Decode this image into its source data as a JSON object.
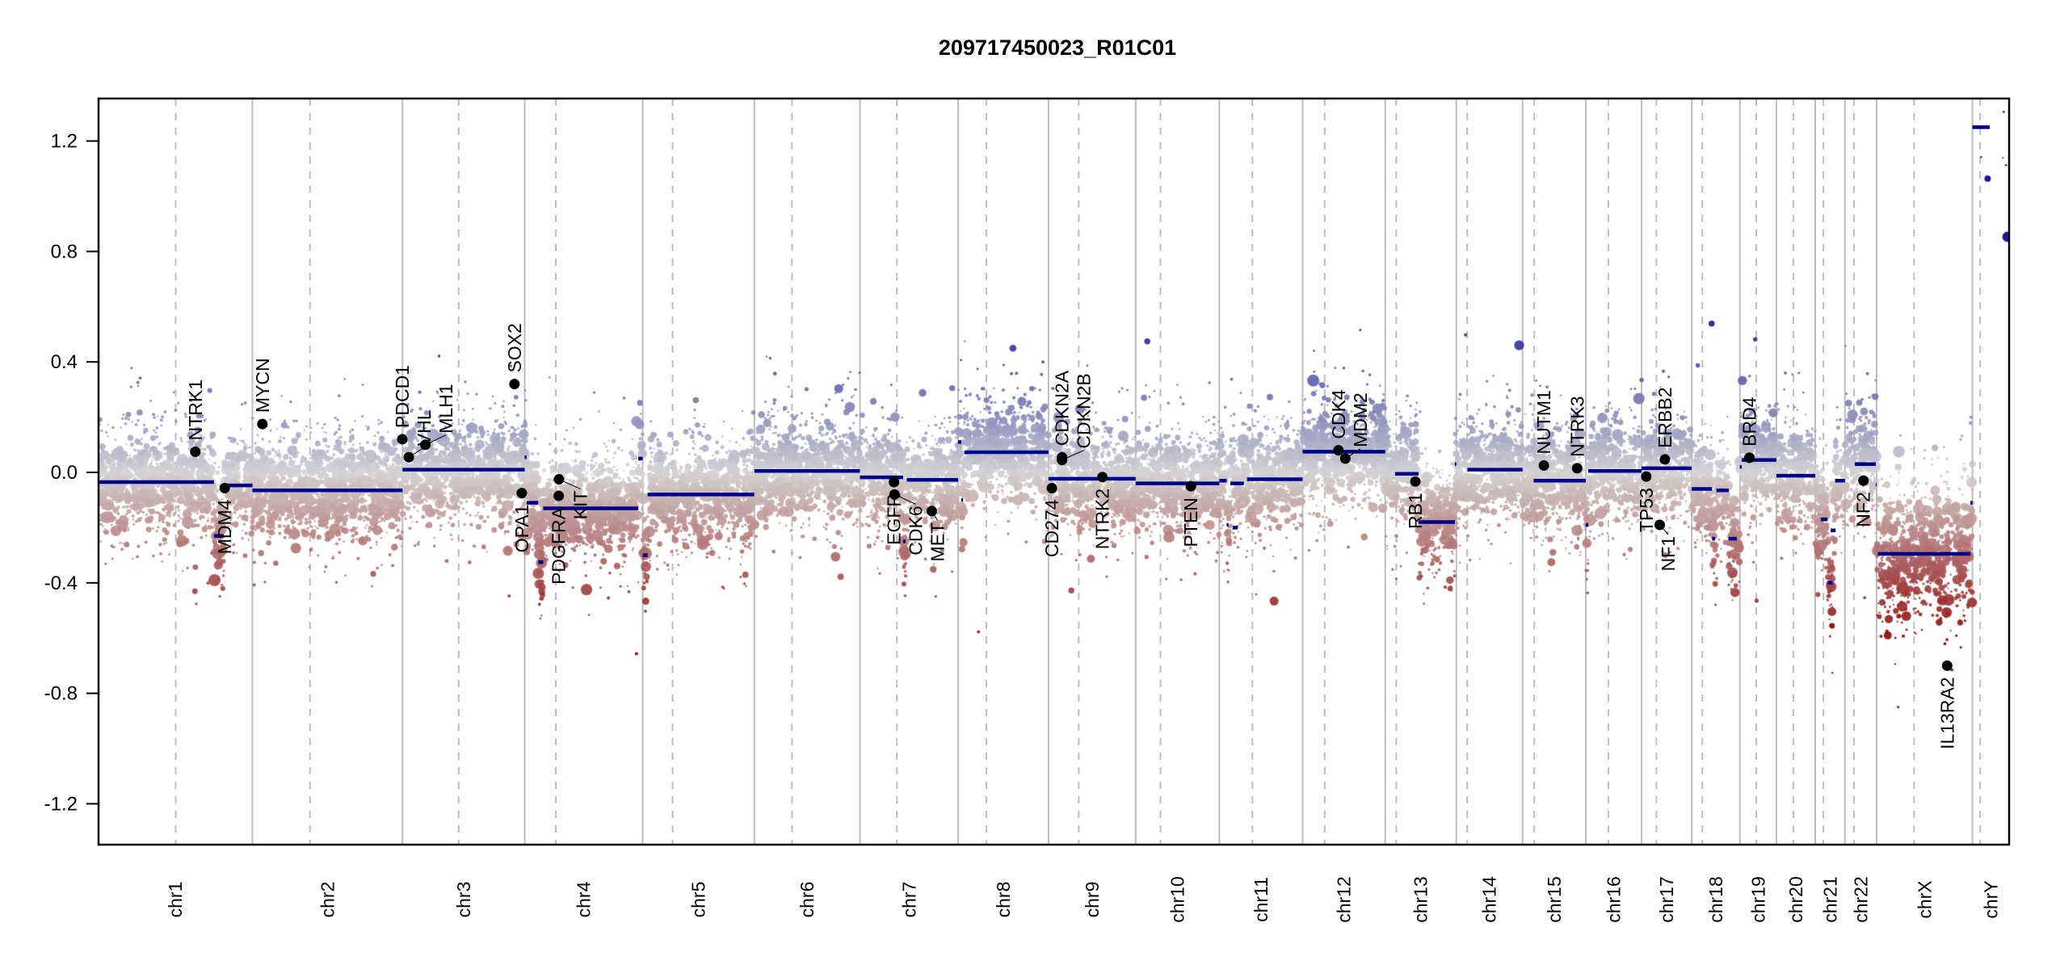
{
  "title": "209717450023_R01C01",
  "colors": {
    "gain": "#00008b",
    "loss": "#8b0000",
    "neutral": "#d3d3d3",
    "segment": "#00008b",
    "grid": "#bebebe",
    "gene_point": "#000000"
  },
  "chart_data": {
    "type": "scatter",
    "title": "209717450023_R01C01",
    "xlabel": "",
    "ylabel": "",
    "ylim": [
      -1.35,
      1.35
    ],
    "yticks": [
      -1.2,
      -0.8,
      -0.4,
      0.0,
      0.4,
      0.8,
      1.2
    ],
    "ytick_labels": [
      "-1.2",
      "-0.8",
      "-0.4",
      "0.0",
      "0.4",
      "0.8",
      "1.2"
    ],
    "grid": "chromosome boundaries (solid) and centromeres (dashed)",
    "chromosomes": [
      {
        "name": "chr1",
        "length_mb": 249.3,
        "centromere_mb": 125.0
      },
      {
        "name": "chr2",
        "length_mb": 243.2,
        "centromere_mb": 93.3
      },
      {
        "name": "chr3",
        "length_mb": 198.0,
        "centromere_mb": 91.0
      },
      {
        "name": "chr4",
        "length_mb": 191.2,
        "centromere_mb": 50.4
      },
      {
        "name": "chr5",
        "length_mb": 180.9,
        "centromere_mb": 48.4
      },
      {
        "name": "chr6",
        "length_mb": 171.1,
        "centromere_mb": 61.0
      },
      {
        "name": "chr7",
        "length_mb": 159.1,
        "centromere_mb": 59.9
      },
      {
        "name": "chr8",
        "length_mb": 146.4,
        "centromere_mb": 45.6
      },
      {
        "name": "chr9",
        "length_mb": 141.2,
        "centromere_mb": 49.0
      },
      {
        "name": "chr10",
        "length_mb": 135.5,
        "centromere_mb": 40.2
      },
      {
        "name": "chr11",
        "length_mb": 135.0,
        "centromere_mb": 53.7
      },
      {
        "name": "chr12",
        "length_mb": 133.9,
        "centromere_mb": 35.8
      },
      {
        "name": "chr13",
        "length_mb": 115.2,
        "centromere_mb": 17.9
      },
      {
        "name": "chr14",
        "length_mb": 107.3,
        "centromere_mb": 17.6
      },
      {
        "name": "chr15",
        "length_mb": 102.5,
        "centromere_mb": 19.0
      },
      {
        "name": "chr16",
        "length_mb": 90.4,
        "centromere_mb": 36.6
      },
      {
        "name": "chr17",
        "length_mb": 81.2,
        "centromere_mb": 24.0
      },
      {
        "name": "chr18",
        "length_mb": 78.1,
        "centromere_mb": 17.2
      },
      {
        "name": "chr19",
        "length_mb": 59.1,
        "centromere_mb": 26.5
      },
      {
        "name": "chr20",
        "length_mb": 63.0,
        "centromere_mb": 27.5
      },
      {
        "name": "chr21",
        "length_mb": 48.1,
        "centromere_mb": 13.2
      },
      {
        "name": "chr22",
        "length_mb": 51.3,
        "centromere_mb": 14.7
      },
      {
        "name": "chrX",
        "length_mb": 155.3,
        "centromere_mb": 60.6
      },
      {
        "name": "chrY",
        "length_mb": 59.4,
        "centromere_mb": 12.5
      }
    ],
    "segments": [
      {
        "chr": "chr1",
        "start_mb": 0,
        "end_mb": 187,
        "value": -0.035
      },
      {
        "chr": "chr1",
        "start_mb": 187,
        "end_mb": 203,
        "value": -0.23
      },
      {
        "chr": "chr1",
        "start_mb": 203,
        "end_mb": 249.3,
        "value": -0.047
      },
      {
        "chr": "chr2",
        "start_mb": 0,
        "end_mb": 243.2,
        "value": -0.065
      },
      {
        "chr": "chr3",
        "start_mb": 0,
        "end_mb": 198.0,
        "value": 0.01
      },
      {
        "chr": "chr4",
        "start_mb": 0,
        "end_mb": 3,
        "value": 0.055
      },
      {
        "chr": "chr4",
        "start_mb": 3,
        "end_mb": 22,
        "value": -0.11
      },
      {
        "chr": "chr4",
        "start_mb": 22,
        "end_mb": 30,
        "value": -0.325
      },
      {
        "chr": "chr4",
        "start_mb": 30,
        "end_mb": 184,
        "value": -0.13
      },
      {
        "chr": "chr4",
        "start_mb": 184,
        "end_mb": 191.2,
        "value": 0.05
      },
      {
        "chr": "chr5",
        "start_mb": 0,
        "end_mb": 8,
        "value": -0.3
      },
      {
        "chr": "chr5",
        "start_mb": 8,
        "end_mb": 180.9,
        "value": -0.08
      },
      {
        "chr": "chr6",
        "start_mb": 0,
        "end_mb": 171.1,
        "value": 0.005
      },
      {
        "chr": "chr7",
        "start_mb": 0,
        "end_mb": 70,
        "value": -0.018
      },
      {
        "chr": "chr7",
        "start_mb": 70,
        "end_mb": 74,
        "value": -0.25
      },
      {
        "chr": "chr7",
        "start_mb": 76,
        "end_mb": 159.1,
        "value": -0.027
      },
      {
        "chr": "chr8",
        "start_mb": 0,
        "end_mb": 5,
        "value": 0.11
      },
      {
        "chr": "chr8",
        "start_mb": 5,
        "end_mb": 8,
        "value": -0.1
      },
      {
        "chr": "chr8",
        "start_mb": 10,
        "end_mb": 146.4,
        "value": 0.073
      },
      {
        "chr": "chr9",
        "start_mb": 0,
        "end_mb": 141.2,
        "value": -0.023
      },
      {
        "chr": "chr10",
        "start_mb": 0,
        "end_mb": 135.5,
        "value": -0.04
      },
      {
        "chr": "chr11",
        "start_mb": 0,
        "end_mb": 12,
        "value": -0.03
      },
      {
        "chr": "chr11",
        "start_mb": 12,
        "end_mb": 15,
        "value": -0.19
      },
      {
        "chr": "chr11",
        "start_mb": 18,
        "end_mb": 40,
        "value": -0.04
      },
      {
        "chr": "chr11",
        "start_mb": 22,
        "end_mb": 30,
        "value": -0.2
      },
      {
        "chr": "chr11",
        "start_mb": 45,
        "end_mb": 135.0,
        "value": -0.025
      },
      {
        "chr": "chr12",
        "start_mb": 0,
        "end_mb": 133.9,
        "value": 0.075
      },
      {
        "chr": "chr13",
        "start_mb": 16,
        "end_mb": 54,
        "value": -0.005
      },
      {
        "chr": "chr13",
        "start_mb": 54,
        "end_mb": 113,
        "value": -0.18
      },
      {
        "chr": "chr13",
        "start_mb": 113,
        "end_mb": 115.2,
        "value": 0.03
      },
      {
        "chr": "chr14",
        "start_mb": 18,
        "end_mb": 107.3,
        "value": 0.01
      },
      {
        "chr": "chr15",
        "start_mb": 18,
        "end_mb": 102.5,
        "value": -0.03
      },
      {
        "chr": "chr16",
        "start_mb": 0,
        "end_mb": 4,
        "value": -0.19
      },
      {
        "chr": "chr16",
        "start_mb": 4,
        "end_mb": 90.4,
        "value": 0.005
      },
      {
        "chr": "chr17",
        "start_mb": 0,
        "end_mb": 81.2,
        "value": 0.015
      },
      {
        "chr": "chr18",
        "start_mb": 0,
        "end_mb": 33,
        "value": -0.06
      },
      {
        "chr": "chr18",
        "start_mb": 33,
        "end_mb": 38,
        "value": -0.24
      },
      {
        "chr": "chr18",
        "start_mb": 40,
        "end_mb": 60,
        "value": -0.065
      },
      {
        "chr": "chr18",
        "start_mb": 60,
        "end_mb": 73,
        "value": -0.24
      },
      {
        "chr": "chr19",
        "start_mb": 0,
        "end_mb": 3,
        "value": 0.02
      },
      {
        "chr": "chr19",
        "start_mb": 3,
        "end_mb": 59.1,
        "value": 0.045
      },
      {
        "chr": "chr20",
        "start_mb": 0,
        "end_mb": 63.0,
        "value": -0.012
      },
      {
        "chr": "chr21",
        "start_mb": 9,
        "end_mb": 20,
        "value": -0.17
      },
      {
        "chr": "chr21",
        "start_mb": 20,
        "end_mb": 28,
        "value": -0.4
      },
      {
        "chr": "chr21",
        "start_mb": 25,
        "end_mb": 33,
        "value": -0.21
      },
      {
        "chr": "chr21",
        "start_mb": 32,
        "end_mb": 48.1,
        "value": -0.03
      },
      {
        "chr": "chr22",
        "start_mb": 16,
        "end_mb": 50,
        "value": 0.03
      },
      {
        "chr": "chr22",
        "start_mb": 50,
        "end_mb": 51.3,
        "value": -0.045
      },
      {
        "chr": "chrX",
        "start_mb": 2,
        "end_mb": 152,
        "value": -0.295
      },
      {
        "chr": "chrX",
        "start_mb": 152,
        "end_mb": 155.3,
        "value": -0.11
      },
      {
        "chr": "chrY",
        "start_mb": 0,
        "end_mb": 28,
        "value": 1.25
      }
    ],
    "genes": [
      {
        "name": "NTRK1",
        "chr": "chr1",
        "pos_mb": 156.8,
        "value": 0.075
      },
      {
        "name": "MDM4",
        "chr": "chr1",
        "pos_mb": 204.5,
        "value": -0.057
      },
      {
        "name": "MYCN",
        "chr": "chr2",
        "pos_mb": 16.1,
        "value": 0.175
      },
      {
        "name": "PDCD1",
        "chr": "chr2",
        "pos_mb": 242.8,
        "value": 0.12
      },
      {
        "name": "VHL",
        "chr": "chr3",
        "pos_mb": 10.2,
        "value": 0.055
      },
      {
        "name": "MLH1",
        "chr": "chr3",
        "pos_mb": 37.0,
        "value": 0.1
      },
      {
        "name": "SOX2",
        "chr": "chr3",
        "pos_mb": 181.4,
        "value": 0.32
      },
      {
        "name": "OPA1",
        "chr": "chr3",
        "pos_mb": 193.3,
        "value": -0.075
      },
      {
        "name": "PDGFRA",
        "chr": "chr4",
        "pos_mb": 55.1,
        "value": -0.085
      },
      {
        "name": "KIT",
        "chr": "chr4",
        "pos_mb": 55.5,
        "value": -0.025
      },
      {
        "name": "EGFR",
        "chr": "chr7",
        "pos_mb": 55.2,
        "value": -0.035
      },
      {
        "name": "CDK6",
        "chr": "chr7",
        "pos_mb": 56.0,
        "value": -0.08
      },
      {
        "name": "MET",
        "chr": "chr7",
        "pos_mb": 116.4,
        "value": -0.14
      },
      {
        "name": "CD274",
        "chr": "chr9",
        "pos_mb": 5.5,
        "value": -0.057
      },
      {
        "name": "CDKN2A",
        "chr": "chr9",
        "pos_mb": 21.97,
        "value": 0.055
      },
      {
        "name": "CDKN2B",
        "chr": "chr9",
        "pos_mb": 22.0,
        "value": 0.045
      },
      {
        "name": "NTRK2",
        "chr": "chr9",
        "pos_mb": 87.3,
        "value": -0.017
      },
      {
        "name": "PTEN",
        "chr": "chr10",
        "pos_mb": 89.6,
        "value": -0.05
      },
      {
        "name": "CDK4",
        "chr": "chr12",
        "pos_mb": 58.1,
        "value": 0.08
      },
      {
        "name": "MDM2",
        "chr": "chr12",
        "pos_mb": 69.2,
        "value": 0.05
      },
      {
        "name": "RB1",
        "chr": "chr13",
        "pos_mb": 48.9,
        "value": -0.033
      },
      {
        "name": "NUTM1",
        "chr": "chr15",
        "pos_mb": 34.6,
        "value": 0.025
      },
      {
        "name": "NTRK3",
        "chr": "chr15",
        "pos_mb": 88.5,
        "value": 0.015
      },
      {
        "name": "TP53",
        "chr": "chr17",
        "pos_mb": 7.6,
        "value": -0.015
      },
      {
        "name": "NF1",
        "chr": "chr17",
        "pos_mb": 29.4,
        "value": -0.19
      },
      {
        "name": "ERBB2",
        "chr": "chr17",
        "pos_mb": 37.8,
        "value": 0.047
      },
      {
        "name": "BRD4",
        "chr": "chr19",
        "pos_mb": 15.4,
        "value": 0.053
      },
      {
        "name": "NF2",
        "chr": "chr22",
        "pos_mb": 30.0,
        "value": -0.03
      },
      {
        "name": "IL13RA2",
        "chr": "chrX",
        "pos_mb": 114.3,
        "value": -0.7
      }
    ]
  }
}
